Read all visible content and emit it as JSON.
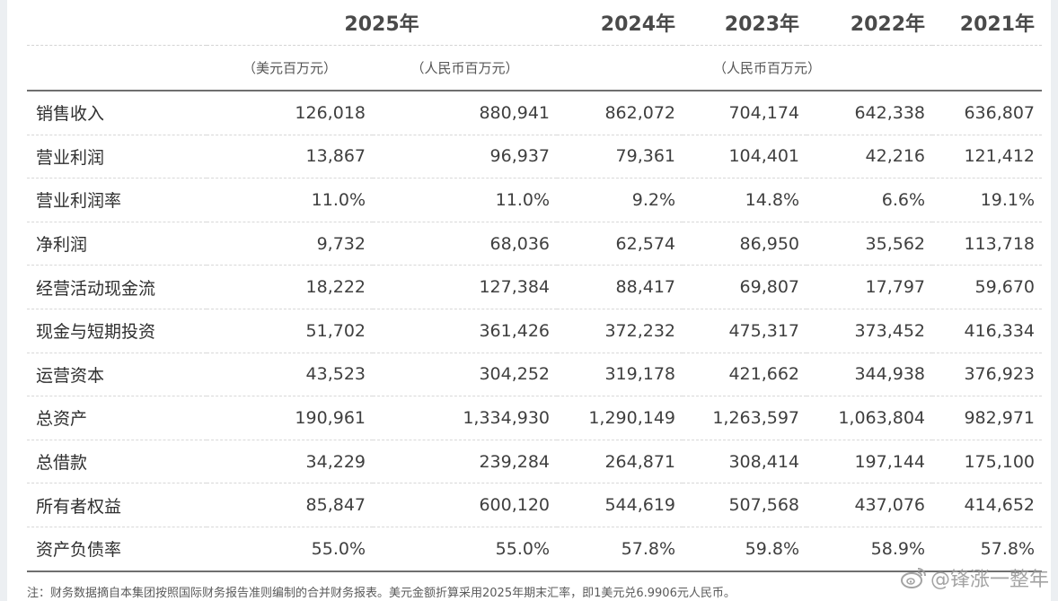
{
  "table": {
    "years": [
      "2025年",
      "2024年",
      "2023年",
      "2022年",
      "2021年"
    ],
    "units": {
      "usd": "（美元百万元）",
      "rmb_2025": "（人民币百万元）",
      "rmb_history": "（人民币百万元）"
    },
    "rows": [
      {
        "label": "销售收入",
        "values": [
          "126,018",
          "880,941",
          "862,072",
          "704,174",
          "642,338",
          "636,807"
        ]
      },
      {
        "label": "营业利润",
        "values": [
          "13,867",
          "96,937",
          "79,361",
          "104,401",
          "42,216",
          "121,412"
        ]
      },
      {
        "label": "营业利润率",
        "values": [
          "11.0%",
          "11.0%",
          "9.2%",
          "14.8%",
          "6.6%",
          "19.1%"
        ]
      },
      {
        "label": "净利润",
        "values": [
          "9,732",
          "68,036",
          "62,574",
          "86,950",
          "35,562",
          "113,718"
        ]
      },
      {
        "label": "经营活动现金流",
        "values": [
          "18,222",
          "127,384",
          "88,417",
          "69,807",
          "17,797",
          "59,670"
        ]
      },
      {
        "label": "现金与短期投资",
        "values": [
          "51,702",
          "361,426",
          "372,232",
          "475,317",
          "373,452",
          "416,334"
        ]
      },
      {
        "label": "运营资本",
        "values": [
          "43,523",
          "304,252",
          "319,178",
          "421,662",
          "344,938",
          "376,923"
        ]
      },
      {
        "label": "总资产",
        "values": [
          "190,961",
          "1,334,930",
          "1,290,149",
          "1,263,597",
          "1,063,804",
          "982,971"
        ]
      },
      {
        "label": "总借款",
        "values": [
          "34,229",
          "239,284",
          "264,871",
          "308,414",
          "197,144",
          "175,100"
        ]
      },
      {
        "label": "所有者权益",
        "values": [
          "85,847",
          "600,120",
          "544,619",
          "507,568",
          "437,076",
          "414,652"
        ]
      },
      {
        "label": "资产负债率",
        "values": [
          "55.0%",
          "55.0%",
          "57.8%",
          "59.8%",
          "58.9%",
          "57.8%"
        ]
      }
    ]
  },
  "footnote": "注：财务数据摘自本集团按照国际财务报告准则编制的合并财务报表。美元金额折算采用2025年期末汇率，即1美元兑6.9906元人民币。",
  "watermark": {
    "icon": "weibo-icon",
    "text": "@锋涨一整年"
  }
}
